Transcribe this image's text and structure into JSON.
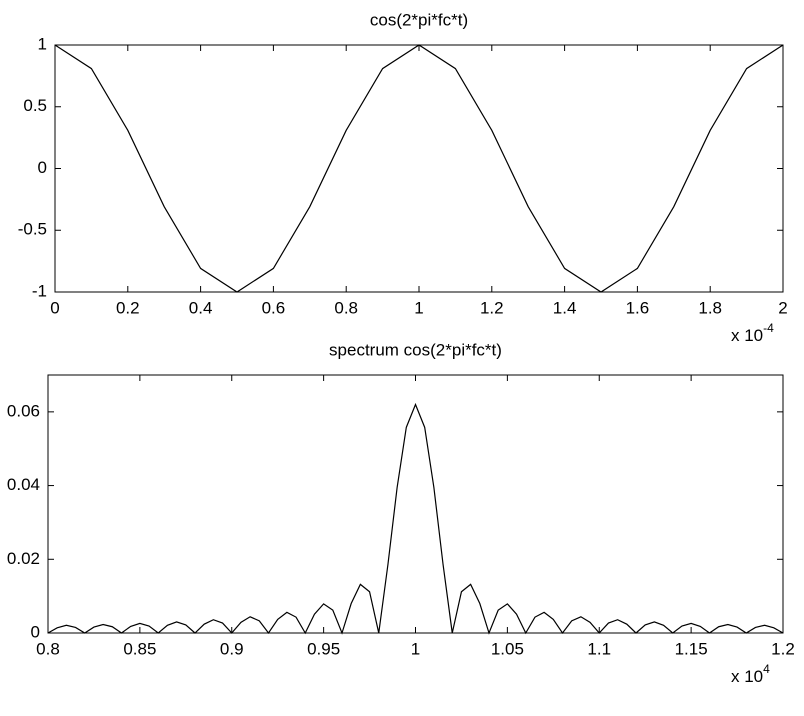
{
  "chart_data": [
    {
      "type": "line",
      "title": "cos(2*pi*fc*t)",
      "x": [
        0,
        0.1,
        0.2,
        0.3,
        0.4,
        0.5,
        0.6,
        0.7,
        0.8,
        0.9,
        1,
        1.1,
        1.2,
        1.3,
        1.4,
        1.5,
        1.6,
        1.7,
        1.8,
        1.9,
        2
      ],
      "values": [
        1,
        0.809,
        0.309,
        -0.309,
        -0.809,
        -1,
        -0.809,
        -0.309,
        0.309,
        0.809,
        1,
        0.809,
        0.309,
        -0.309,
        -0.809,
        -1,
        -0.809,
        -0.309,
        0.309,
        0.809,
        1
      ],
      "color": "#000000",
      "xlim": [
        0,
        2
      ],
      "xticks": [
        0,
        0.2,
        0.4,
        0.6,
        0.8,
        1,
        1.2,
        1.4,
        1.6,
        1.8,
        2
      ],
      "ylim": [
        -1,
        1
      ],
      "yticks": [
        -1,
        -0.5,
        0,
        0.5,
        1
      ],
      "x_scale_base": "x 10",
      "x_scale_exponent": "-4"
    },
    {
      "type": "line",
      "title": "spectrum cos(2*pi*fc*t)",
      "x": [
        0.8,
        0.805,
        0.81,
        0.815,
        0.82,
        0.825,
        0.83,
        0.835,
        0.84,
        0.845,
        0.85,
        0.855,
        0.86,
        0.865,
        0.87,
        0.875,
        0.88,
        0.885,
        0.89,
        0.895,
        0.9,
        0.905,
        0.91,
        0.915,
        0.92,
        0.925,
        0.93,
        0.935,
        0.94,
        0.945,
        0.95,
        0.955,
        0.96,
        0.965,
        0.97,
        0.975,
        0.98,
        0.985,
        0.99,
        0.995,
        1,
        1.005,
        1.01,
        1.015,
        1.02,
        1.025,
        1.03,
        1.035,
        1.04,
        1.045,
        1.05,
        1.055,
        1.06,
        1.065,
        1.07,
        1.075,
        1.08,
        1.085,
        1.09,
        1.095,
        1.1,
        1.105,
        1.11,
        1.115,
        1.12,
        1.125,
        1.13,
        1.135,
        1.14,
        1.145,
        1.15,
        1.155,
        1.16,
        1.165,
        1.17,
        1.175,
        1.18,
        1.185,
        1.19,
        1.195,
        1.2
      ],
      "values": [
        0,
        0.0014,
        0.0021,
        0.0015,
        0,
        0.0016,
        0.0023,
        0.0017,
        0,
        0.0018,
        0.0026,
        0.0019,
        0,
        0.0021,
        0.003,
        0.0022,
        0,
        0.0024,
        0.0036,
        0.0027,
        0,
        0.0029,
        0.0044,
        0.0033,
        0,
        0.0037,
        0.0056,
        0.0043,
        0,
        0.0051,
        0.0079,
        0.0062,
        0,
        0.008,
        0.0132,
        0.0112,
        0,
        0.0186,
        0.0395,
        0.0558,
        0.062,
        0.0558,
        0.0395,
        0.0186,
        0,
        0.0112,
        0.0132,
        0.008,
        0,
        0.0062,
        0.0079,
        0.0051,
        0,
        0.0043,
        0.0056,
        0.0037,
        0,
        0.0033,
        0.0044,
        0.0029,
        0,
        0.0027,
        0.0036,
        0.0024,
        0,
        0.0022,
        0.003,
        0.0021,
        0,
        0.0019,
        0.0026,
        0.0018,
        0,
        0.0017,
        0.0023,
        0.0016,
        0,
        0.0015,
        0.0021,
        0.0014,
        0
      ],
      "color": "#000000",
      "xlim": [
        0.8,
        1.2
      ],
      "xticks": [
        0.8,
        0.85,
        0.9,
        0.95,
        1,
        1.05,
        1.1,
        1.15,
        1.2
      ],
      "ylim": [
        0,
        0.07
      ],
      "yticks": [
        0,
        0.02,
        0.04,
        0.06
      ],
      "x_scale_base": "x 10",
      "x_scale_exponent": "4"
    }
  ]
}
